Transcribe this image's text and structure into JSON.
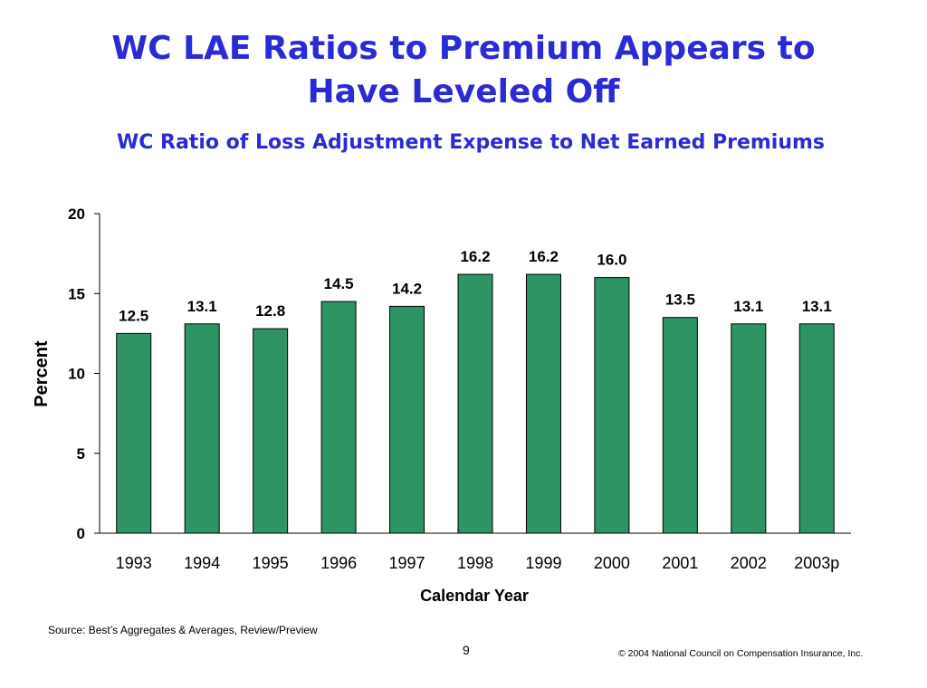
{
  "slide": {
    "title_line1": "WC LAE Ratios to Premium Appears to",
    "title_line2": "Have Leveled Off",
    "page_number": "9",
    "source": "Source: Best’s Aggregates & Averages, Review/Preview",
    "copyright": "© 2004 National Council on Compensation Insurance, Inc."
  },
  "colors": {
    "title": "#2b2bd6",
    "bar_fill": "#2e9464",
    "bar_stroke": "#000000"
  },
  "chart_data": {
    "type": "bar",
    "title": "WC Ratio of Loss Adjustment Expense to Net Earned Premiums",
    "xlabel": "Calendar Year",
    "ylabel": "Percent",
    "categories": [
      "1993",
      "1994",
      "1995",
      "1996",
      "1997",
      "1998",
      "1999",
      "2000",
      "2001",
      "2002",
      "2003p"
    ],
    "values": [
      12.5,
      13.1,
      12.8,
      14.5,
      14.2,
      16.2,
      16.2,
      16.0,
      13.5,
      13.1,
      13.1
    ],
    "data_labels": [
      "12.5",
      "13.1",
      "12.8",
      "14.5",
      "14.2",
      "16.2",
      "16.2",
      "16.0",
      "13.5",
      "13.1",
      "13.1"
    ],
    "ylim": [
      0,
      20
    ],
    "yticks": [
      0,
      5,
      10,
      15,
      20
    ],
    "grid": false,
    "legend": "none"
  }
}
